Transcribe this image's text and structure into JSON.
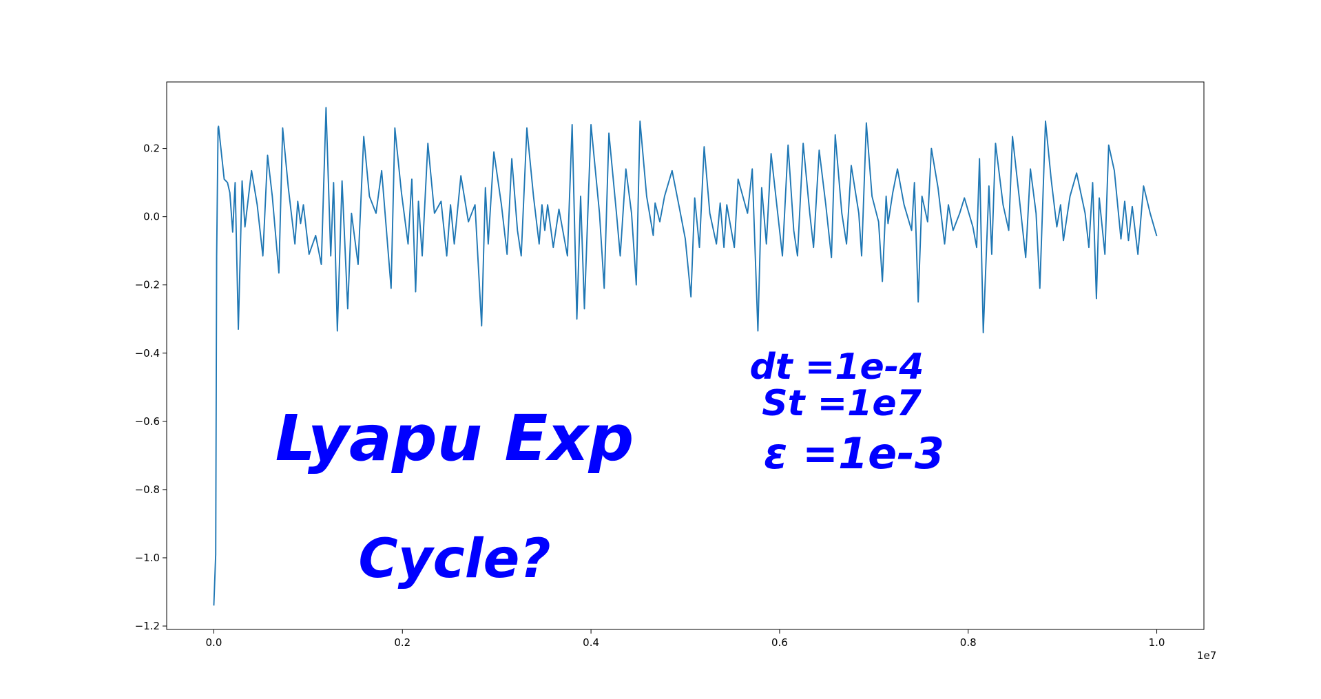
{
  "chart_data": {
    "type": "line",
    "x_offset_label": "1e7",
    "xlim": [
      -0.05,
      1.05
    ],
    "ylim": [
      -1.21,
      0.395
    ],
    "xticks": [
      {
        "value": 0,
        "label": "0.0"
      },
      {
        "value": 0.2,
        "label": "0.2"
      },
      {
        "value": 0.4,
        "label": "0.4"
      },
      {
        "value": 0.6,
        "label": "0.6"
      },
      {
        "value": 0.8,
        "label": "0.8"
      },
      {
        "value": 1.0,
        "label": "1.0"
      }
    ],
    "yticks": [
      {
        "value": -1.2,
        "label": "−1.2"
      },
      {
        "value": -1.0,
        "label": "−1.0"
      },
      {
        "value": -0.8,
        "label": "−0.8"
      },
      {
        "value": -0.6,
        "label": "−0.6"
      },
      {
        "value": -0.4,
        "label": "−0.4"
      },
      {
        "value": -0.2,
        "label": "−0.2"
      },
      {
        "value": 0,
        "label": "0.0"
      },
      {
        "value": 0.2,
        "label": "0.2"
      }
    ],
    "annotations": [
      "Lyapu Exp",
      "Cycle?",
      "dt =1e-4",
      "St =1e7",
      "ε =1e-3"
    ],
    "series": [
      {
        "color": "#1f77b4",
        "x": [
          0,
          0.002,
          0.003,
          0.0045,
          0.005,
          0.011,
          0.0145,
          0.017,
          0.02,
          0.0226,
          0.026,
          0.03,
          0.033,
          0.04,
          0.046,
          0.052,
          0.057,
          0.062,
          0.069,
          0.073,
          0.079,
          0.086,
          0.089,
          0.092,
          0.095,
          0.101,
          0.108,
          0.114,
          0.119,
          0.124,
          0.127,
          0.131,
          0.136,
          0.142,
          0.146,
          0.153,
          0.159,
          0.165,
          0.172,
          0.178,
          0.188,
          0.192,
          0.199,
          0.206,
          0.21,
          0.214,
          0.217,
          0.221,
          0.227,
          0.234,
          0.241,
          0.247,
          0.251,
          0.255,
          0.262,
          0.27,
          0.277,
          0.284,
          0.288,
          0.291,
          0.297,
          0.305,
          0.311,
          0.316,
          0.322,
          0.326,
          0.332,
          0.339,
          0.345,
          0.348,
          0.351,
          0.354,
          0.36,
          0.366,
          0.375,
          0.38,
          0.385,
          0.389,
          0.393,
          0.4,
          0.409,
          0.414,
          0.419,
          0.427,
          0.431,
          0.437,
          0.443,
          0.448,
          0.452,
          0.459,
          0.466,
          0.468,
          0.473,
          0.478,
          0.486,
          0.494,
          0.5,
          0.506,
          0.51,
          0.515,
          0.52,
          0.526,
          0.533,
          0.537,
          0.541,
          0.544,
          0.552,
          0.556,
          0.566,
          0.571,
          0.577,
          0.581,
          0.586,
          0.591,
          0.598,
          0.603,
          0.609,
          0.615,
          0.619,
          0.625,
          0.632,
          0.636,
          0.642,
          0.649,
          0.655,
          0.659,
          0.666,
          0.671,
          0.676,
          0.684,
          0.687,
          0.692,
          0.698,
          0.705,
          0.709,
          0.713,
          0.715,
          0.72,
          0.725,
          0.732,
          0.74,
          0.743,
          0.747,
          0.751,
          0.757,
          0.761,
          0.768,
          0.775,
          0.779,
          0.784,
          0.791,
          0.796,
          0.805,
          0.809,
          0.812,
          0.816,
          0.822,
          0.825,
          0.829,
          0.837,
          0.843,
          0.847,
          0.854,
          0.861,
          0.866,
          0.872,
          0.876,
          0.882,
          0.888,
          0.894,
          0.898,
          0.901,
          0.908,
          0.915,
          0.924,
          0.928,
          0.932,
          0.936,
          0.939,
          0.945,
          0.949,
          0.955,
          0.962,
          0.966,
          0.97,
          0.974,
          0.98,
          0.986,
          0.993,
          1.0
        ],
        "values": [
          -1.14,
          -0.99,
          -0.115,
          0.26,
          0.265,
          0.11,
          0.1,
          0.07,
          -0.045,
          0.1,
          -0.33,
          0.105,
          -0.03,
          0.135,
          0.035,
          -0.115,
          0.18,
          0.06,
          -0.165,
          0.26,
          0.085,
          -0.08,
          0.045,
          -0.02,
          0.035,
          -0.11,
          -0.055,
          -0.14,
          0.32,
          -0.115,
          0.1,
          -0.335,
          0.105,
          -0.27,
          0.01,
          -0.14,
          0.235,
          0.06,
          0.01,
          0.135,
          -0.21,
          0.26,
          0.07,
          -0.08,
          0.11,
          -0.22,
          0.045,
          -0.115,
          0.215,
          0.01,
          0.045,
          -0.115,
          0.035,
          -0.08,
          0.12,
          -0.015,
          0.035,
          -0.32,
          0.085,
          -0.08,
          0.19,
          0.035,
          -0.11,
          0.17,
          -0.04,
          -0.115,
          0.26,
          0.06,
          -0.08,
          0.035,
          -0.04,
          0.035,
          -0.09,
          0.022,
          -0.115,
          0.27,
          -0.3,
          0.06,
          -0.27,
          0.27,
          0.01,
          -0.21,
          0.245,
          0.01,
          -0.115,
          0.14,
          0.01,
          -0.2,
          0.28,
          0.06,
          -0.055,
          0.04,
          -0.015,
          0.06,
          0.135,
          0.022,
          -0.065,
          -0.235,
          0.055,
          -0.09,
          0.205,
          0.01,
          -0.08,
          0.04,
          -0.09,
          0.035,
          -0.09,
          0.11,
          0.01,
          0.14,
          -0.335,
          0.085,
          -0.08,
          0.185,
          0.01,
          -0.115,
          0.21,
          -0.04,
          -0.115,
          0.215,
          0.01,
          -0.09,
          0.195,
          0.035,
          -0.12,
          0.24,
          0.01,
          -0.08,
          0.15,
          0.01,
          -0.115,
          0.275,
          0.06,
          -0.015,
          -0.19,
          0.06,
          -0.02,
          0.07,
          0.14,
          0.035,
          -0.04,
          0.1,
          -0.25,
          0.06,
          -0.015,
          0.2,
          0.085,
          -0.08,
          0.035,
          -0.04,
          0.01,
          0.055,
          -0.03,
          -0.09,
          0.17,
          -0.34,
          0.09,
          -0.11,
          0.215,
          0.035,
          -0.04,
          0.235,
          0.06,
          -0.12,
          0.14,
          0.01,
          -0.21,
          0.28,
          0.11,
          -0.03,
          0.035,
          -0.07,
          0.06,
          0.128,
          0.01,
          -0.09,
          0.1,
          -0.24,
          0.055,
          -0.11,
          0.21,
          0.135,
          -0.065,
          0.045,
          -0.07,
          0.03,
          -0.11,
          0.09,
          0.01,
          -0.057
        ]
      }
    ]
  }
}
